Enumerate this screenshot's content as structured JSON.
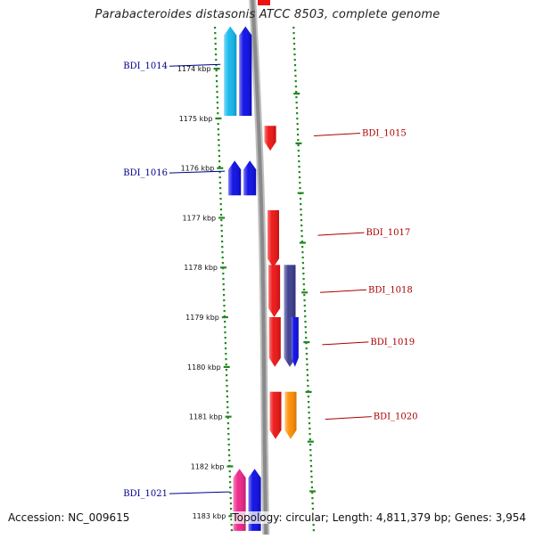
{
  "title": "Parabacteroides distasonis ATCC 8503, complete genome",
  "footer": {
    "accession": "Accession: NC_009615",
    "summary": "Topology: circular; Length: 4,811,379 bp; Genes: 3,954"
  },
  "ruler": {
    "unit": "kbp",
    "ticks": [
      {
        "value": 1174,
        "label": "1174 kbp"
      },
      {
        "value": 1175,
        "label": "1175 kbp"
      },
      {
        "value": 1176,
        "label": "1176 kbp"
      },
      {
        "value": 1177,
        "label": "1177 kbp"
      },
      {
        "value": 1178,
        "label": "1178 kbp"
      },
      {
        "value": 1179,
        "label": "1179 kbp"
      },
      {
        "value": 1180,
        "label": "1180 kbp"
      },
      {
        "value": 1181,
        "label": "1181 kbp"
      },
      {
        "value": 1182,
        "label": "1182 kbp"
      },
      {
        "value": 1183,
        "label": "1183 kbp"
      }
    ]
  },
  "colors": {
    "red": "#ee1111",
    "blue": "#0a0ae6",
    "cyan": "#11b8ee",
    "navy": "#3a3a8e",
    "orange": "#ff8c00",
    "magenta": "#ee2288",
    "backbone": "#8a8a8a",
    "dots": "#228822",
    "label_left": "#000088",
    "label_right": "#aa0000"
  },
  "genes": [
    {
      "name": "BDI_1014",
      "side": "left",
      "start": 1173.15,
      "end": 1174.95,
      "strand": "-",
      "track": 0,
      "color": "cyan",
      "label_at": 1173.95
    },
    {
      "name": "",
      "side": "left",
      "start": 1173.15,
      "end": 1174.95,
      "strand": "-",
      "track": 1,
      "color": "blue",
      "label_at": null
    },
    {
      "name": "BDI_1015",
      "side": "right",
      "start": 1175.15,
      "end": 1175.65,
      "strand": "+",
      "track": 0,
      "color": "red",
      "label_at": 1175.3
    },
    {
      "name": "BDI_1016",
      "side": "left",
      "start": 1175.85,
      "end": 1176.55,
      "strand": "-",
      "track": 0,
      "color": "blue",
      "label_at": 1176.1
    },
    {
      "name": "",
      "side": "left",
      "start": 1175.85,
      "end": 1176.55,
      "strand": "-",
      "track": 1,
      "color": "blue",
      "label_at": null
    },
    {
      "name": "BDI_1017",
      "side": "right",
      "start": 1176.85,
      "end": 1178.0,
      "strand": "+",
      "track": 0,
      "color": "red",
      "label_at": 1177.3
    },
    {
      "name": "BDI_1018",
      "side": "right",
      "start": 1177.95,
      "end": 1179.0,
      "strand": "+",
      "track": 0,
      "color": "red",
      "label_at": 1178.45
    },
    {
      "name": "",
      "side": "right",
      "start": 1177.95,
      "end": 1180.0,
      "strand": "+",
      "track": 1,
      "color": "navy",
      "label_at": null
    },
    {
      "name": "BDI_1019",
      "side": "right",
      "start": 1179.0,
      "end": 1180.0,
      "strand": "+",
      "track": 0,
      "color": "red",
      "label_at": 1179.5
    },
    {
      "name": "",
      "side": "right",
      "start": 1179.0,
      "end": 1180.0,
      "strand": "+",
      "track": 2,
      "color": "blue",
      "label_at": null
    },
    {
      "name": "BDI_1020",
      "side": "right",
      "start": 1180.5,
      "end": 1181.45,
      "strand": "+",
      "track": 0,
      "color": "red",
      "label_at": 1181.0
    },
    {
      "name": "",
      "side": "right",
      "start": 1180.5,
      "end": 1181.45,
      "strand": "+",
      "track": 1,
      "color": "orange",
      "label_at": null
    },
    {
      "name": "BDI_1021",
      "side": "left",
      "start": 1182.05,
      "end": 1183.3,
      "strand": "-",
      "track": 0,
      "color": "magenta",
      "label_at": 1182.55
    },
    {
      "name": "",
      "side": "left",
      "start": 1182.05,
      "end": 1183.3,
      "strand": "-",
      "track": 1,
      "color": "blue",
      "label_at": null
    }
  ]
}
